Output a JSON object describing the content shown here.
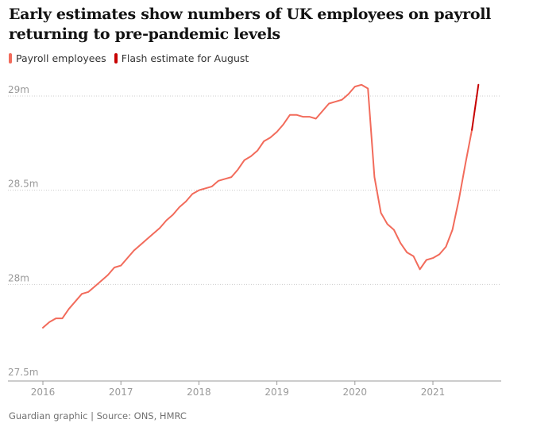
{
  "title": "Early estimates show numbers of UK employees on payroll returning to pre-pandemic levels",
  "legend": [
    {
      "label": "Payroll employees",
      "color": "#f26b5b"
    },
    {
      "label": "Flash estimate for August",
      "color": "#c70000"
    }
  ],
  "footer": "Guardian graphic | Source: ONS, HMRC",
  "chart_data": {
    "type": "line",
    "title": "Early estimates show numbers of UK employees on payroll returning to pre-pandemic levels",
    "xlabel": "",
    "ylabel": "",
    "xlim": [
      "2016-01",
      "2021-09"
    ],
    "ylim": [
      27.5,
      29.0
    ],
    "y_unit": "millions",
    "grid": "horizontal dotted",
    "legend_position": "top-left",
    "x_ticks": [
      {
        "date": "2016-01",
        "label": "2016"
      },
      {
        "date": "2017-01",
        "label": "2017"
      },
      {
        "date": "2018-01",
        "label": "2018"
      },
      {
        "date": "2019-01",
        "label": "2019"
      },
      {
        "date": "2020-01",
        "label": "2020"
      },
      {
        "date": "2021-01",
        "label": "2021"
      }
    ],
    "y_ticks": [
      {
        "value": 29.0,
        "label": "29m"
      },
      {
        "value": 28.5,
        "label": "28.5m"
      },
      {
        "value": 28.0,
        "label": "28m"
      },
      {
        "value": 27.5,
        "label": "27.5m"
      }
    ],
    "series": [
      {
        "name": "Payroll employees",
        "color": "#f26b5b",
        "points": [
          {
            "x": "2016-01",
            "y": 27.77
          },
          {
            "x": "2016-02",
            "y": 27.8
          },
          {
            "x": "2016-03",
            "y": 27.82
          },
          {
            "x": "2016-04",
            "y": 27.82
          },
          {
            "x": "2016-05",
            "y": 27.87
          },
          {
            "x": "2016-06",
            "y": 27.91
          },
          {
            "x": "2016-07",
            "y": 27.95
          },
          {
            "x": "2016-08",
            "y": 27.96
          },
          {
            "x": "2016-09",
            "y": 27.99
          },
          {
            "x": "2016-10",
            "y": 28.02
          },
          {
            "x": "2016-11",
            "y": 28.05
          },
          {
            "x": "2016-12",
            "y": 28.09
          },
          {
            "x": "2017-01",
            "y": 28.1
          },
          {
            "x": "2017-02",
            "y": 28.14
          },
          {
            "x": "2017-03",
            "y": 28.18
          },
          {
            "x": "2017-04",
            "y": 28.21
          },
          {
            "x": "2017-05",
            "y": 28.24
          },
          {
            "x": "2017-06",
            "y": 28.27
          },
          {
            "x": "2017-07",
            "y": 28.3
          },
          {
            "x": "2017-08",
            "y": 28.34
          },
          {
            "x": "2017-09",
            "y": 28.37
          },
          {
            "x": "2017-10",
            "y": 28.41
          },
          {
            "x": "2017-11",
            "y": 28.44
          },
          {
            "x": "2017-12",
            "y": 28.48
          },
          {
            "x": "2018-01",
            "y": 28.5
          },
          {
            "x": "2018-02",
            "y": 28.51
          },
          {
            "x": "2018-03",
            "y": 28.52
          },
          {
            "x": "2018-04",
            "y": 28.55
          },
          {
            "x": "2018-05",
            "y": 28.56
          },
          {
            "x": "2018-06",
            "y": 28.57
          },
          {
            "x": "2018-07",
            "y": 28.61
          },
          {
            "x": "2018-08",
            "y": 28.66
          },
          {
            "x": "2018-09",
            "y": 28.68
          },
          {
            "x": "2018-10",
            "y": 28.71
          },
          {
            "x": "2018-11",
            "y": 28.76
          },
          {
            "x": "2018-12",
            "y": 28.78
          },
          {
            "x": "2019-01",
            "y": 28.81
          },
          {
            "x": "2019-02",
            "y": 28.85
          },
          {
            "x": "2019-03",
            "y": 28.9
          },
          {
            "x": "2019-04",
            "y": 28.9
          },
          {
            "x": "2019-05",
            "y": 28.89
          },
          {
            "x": "2019-06",
            "y": 28.89
          },
          {
            "x": "2019-07",
            "y": 28.88
          },
          {
            "x": "2019-08",
            "y": 28.92
          },
          {
            "x": "2019-09",
            "y": 28.96
          },
          {
            "x": "2019-10",
            "y": 28.97
          },
          {
            "x": "2019-11",
            "y": 28.98
          },
          {
            "x": "2019-12",
            "y": 29.01
          },
          {
            "x": "2020-01",
            "y": 29.05
          },
          {
            "x": "2020-02",
            "y": 29.06
          },
          {
            "x": "2020-03",
            "y": 29.04
          },
          {
            "x": "2020-04",
            "y": 28.57
          },
          {
            "x": "2020-05",
            "y": 28.38
          },
          {
            "x": "2020-06",
            "y": 28.32
          },
          {
            "x": "2020-07",
            "y": 28.29
          },
          {
            "x": "2020-08",
            "y": 28.22
          },
          {
            "x": "2020-09",
            "y": 28.17
          },
          {
            "x": "2020-10",
            "y": 28.15
          },
          {
            "x": "2020-11",
            "y": 28.08
          },
          {
            "x": "2020-12",
            "y": 28.13
          },
          {
            "x": "2021-01",
            "y": 28.14
          },
          {
            "x": "2021-02",
            "y": 28.16
          },
          {
            "x": "2021-03",
            "y": 28.2
          },
          {
            "x": "2021-04",
            "y": 28.29
          },
          {
            "x": "2021-05",
            "y": 28.45
          },
          {
            "x": "2021-06",
            "y": 28.64
          },
          {
            "x": "2021-07",
            "y": 28.82
          }
        ]
      },
      {
        "name": "Flash estimate for August",
        "color": "#c70000",
        "points": [
          {
            "x": "2021-07",
            "y": 28.82
          },
          {
            "x": "2021-08",
            "y": 29.06
          }
        ]
      }
    ]
  }
}
